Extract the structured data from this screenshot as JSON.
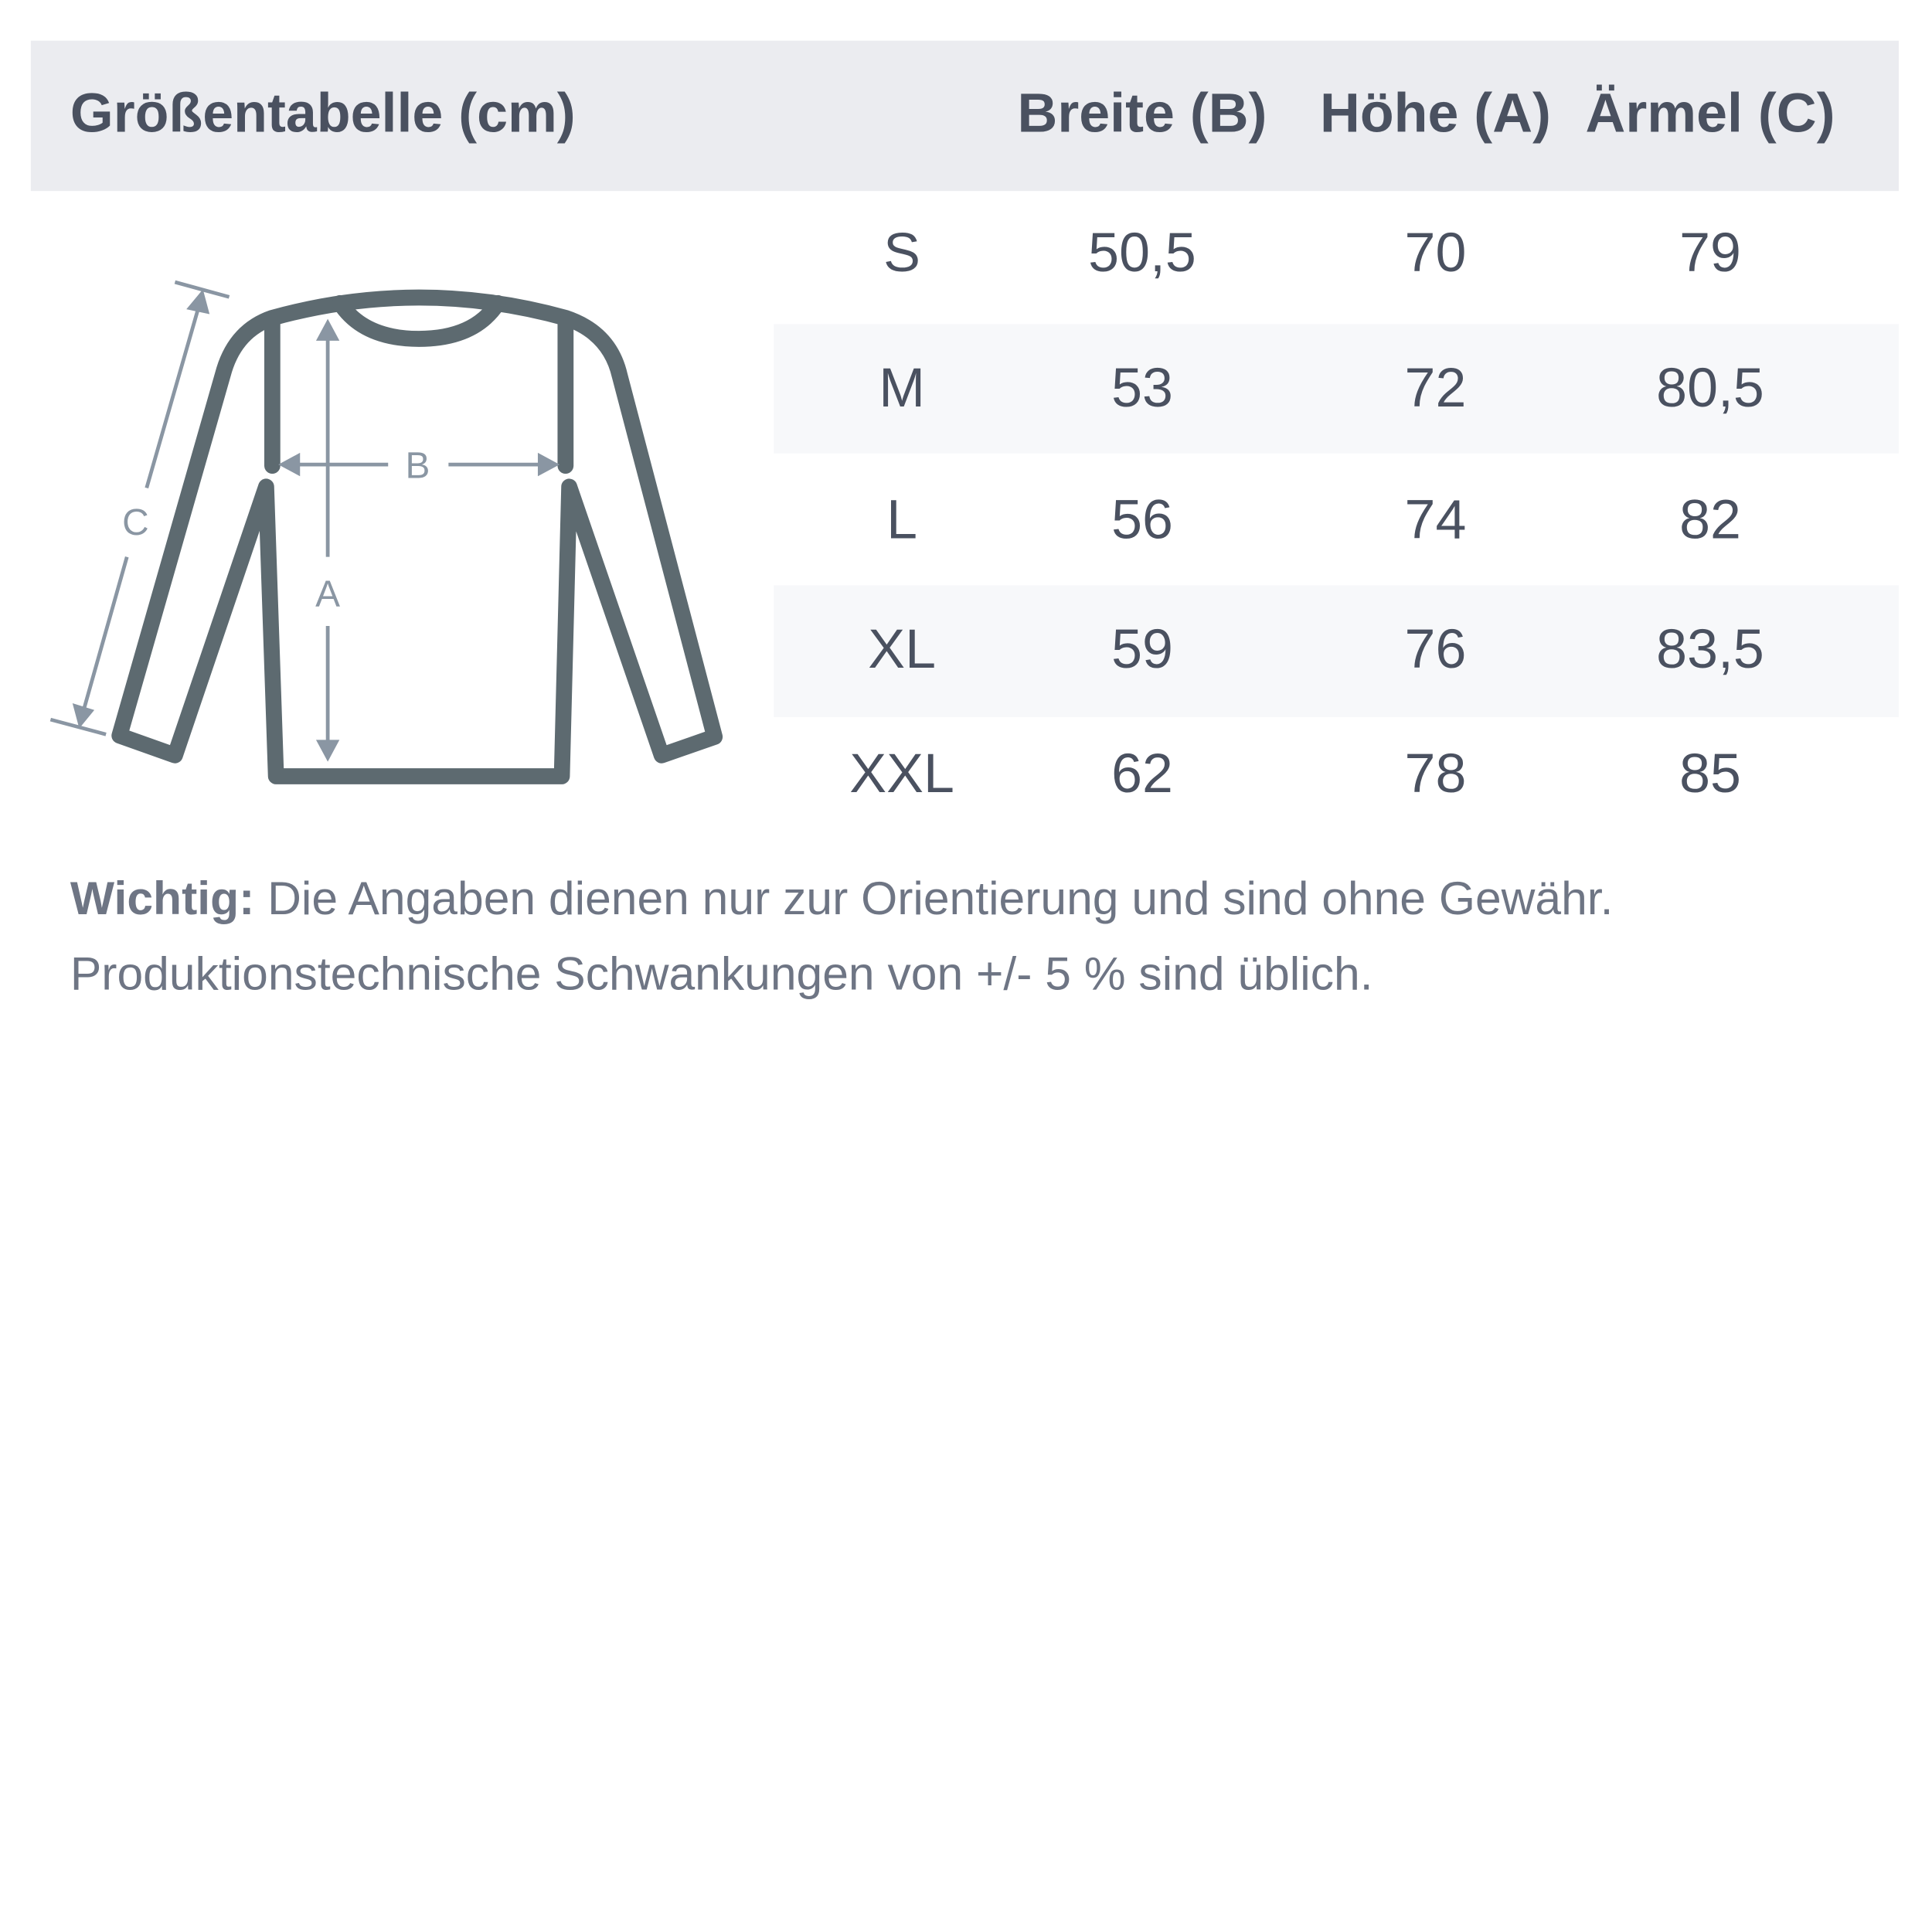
{
  "title": "Größentabelle (cm)",
  "columns": [
    "Breite (B)",
    "Höhe (A)",
    "Ärmel (C)"
  ],
  "rows": [
    {
      "size": "S",
      "breite": "50,5",
      "hoehe": "70",
      "aermel": "79"
    },
    {
      "size": "M",
      "breite": "53",
      "hoehe": "72",
      "aermel": "80,5"
    },
    {
      "size": "L",
      "breite": "56",
      "hoehe": "74",
      "aermel": "82"
    },
    {
      "size": "XL",
      "breite": "59",
      "hoehe": "76",
      "aermel": "83,5"
    },
    {
      "size": "XXL",
      "breite": "62",
      "hoehe": "78",
      "aermel": "85"
    }
  ],
  "diagram": {
    "label_a": "A",
    "label_b": "B",
    "label_c": "C",
    "icon": "sweater-outline-icon"
  },
  "note": {
    "bold": "Wichtig:",
    "line1": " Die Angaben dienen nur zur Orientierung und sind ohne Gewähr.",
    "line2": "Produktionstechnische Schwankungen von +/- 5 % sind üblich."
  },
  "colors": {
    "header_bg": "#ebecf0",
    "stripe_bg": "#f7f8fa",
    "text": "#4a5160",
    "outline": "#5d6a70",
    "measure": "#8a96a3"
  }
}
